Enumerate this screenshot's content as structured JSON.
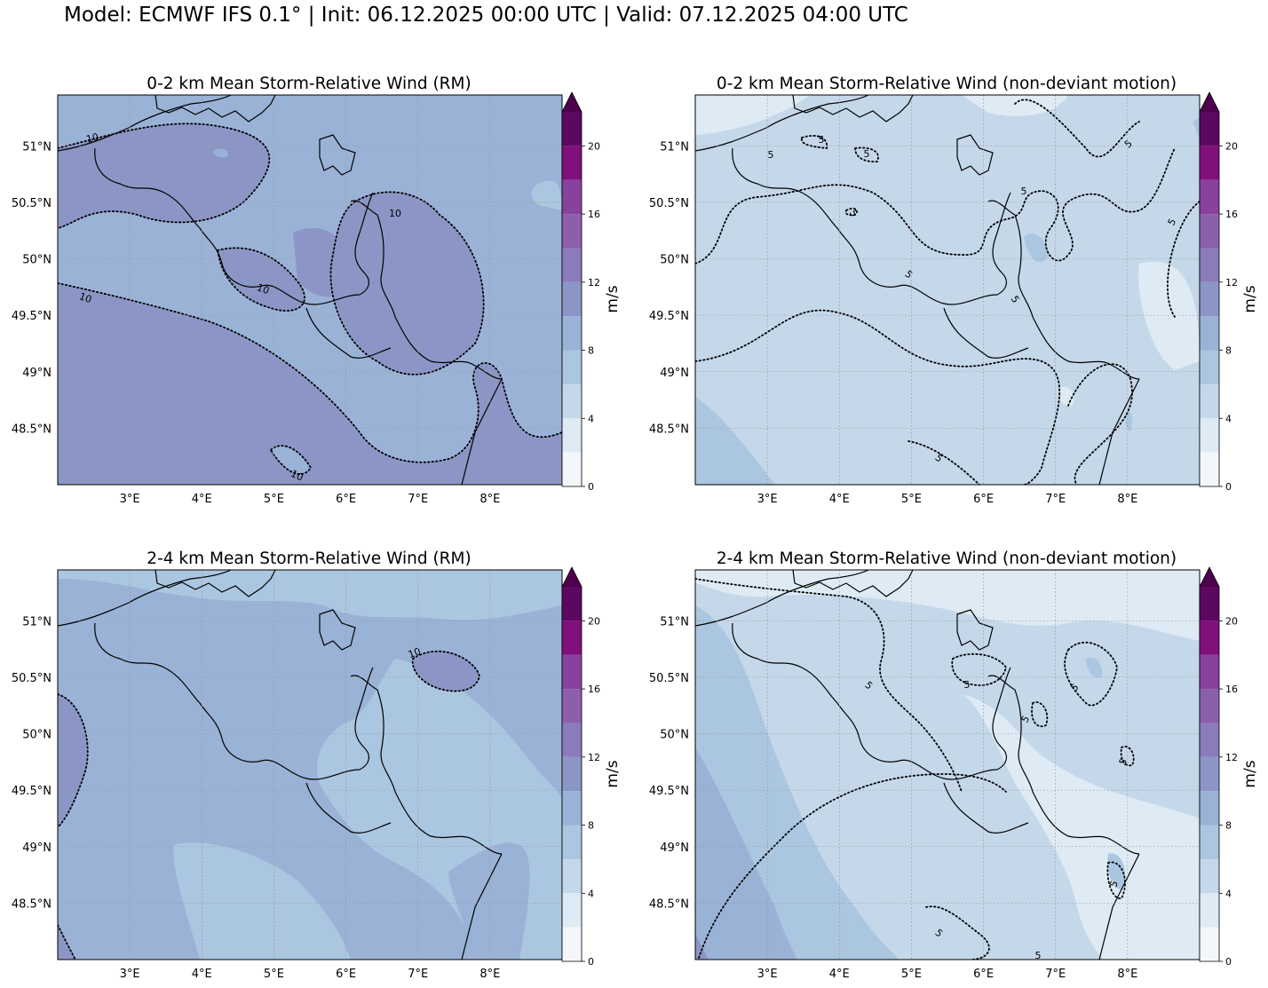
{
  "figure_title": "Model: ECMWF IFS 0.1° | Init: 06.12.2025 00:00 UTC | Valid: 07.12.2025 04:00 UTC",
  "colors": {
    "levels": [
      "#f3f7fb",
      "#dfebf4",
      "#c5d8ea",
      "#abc6e0",
      "#9ab2d6",
      "#8c96c6",
      "#8c7bba",
      "#8c5fac",
      "#88419d",
      "#810f7c",
      "#5c0860",
      "#4d004b"
    ],
    "coast": "#000000",
    "grid": "#9a9a9a"
  },
  "chart_data": [
    {
      "type": "map",
      "title": "0-2 km Mean Storm-Relative Wind (RM)",
      "colorbar": {
        "label": "m/s",
        "range": [
          0,
          22
        ],
        "ticks": [
          "0",
          "4",
          "8",
          "12",
          "16",
          "20"
        ],
        "extend": "max"
      },
      "lon_ticks": [
        "3°E",
        "4°E",
        "5°E",
        "6°E",
        "7°E",
        "8°E"
      ],
      "lat_ticks": [
        "51°N",
        "50.5°N",
        "50°N",
        "49.5°N",
        "49°N",
        "48.5°N"
      ],
      "extent": {
        "lon": [
          2.0,
          9.0
        ],
        "lat": [
          48.0,
          51.45
        ]
      },
      "background_level": 4,
      "contour_labels": [
        "10",
        "10",
        "10",
        "10",
        "10"
      ]
    },
    {
      "type": "map",
      "title": "0-2 km Mean Storm-Relative Wind (non-deviant motion)",
      "colorbar": {
        "label": "m/s",
        "range": [
          0,
          22
        ],
        "ticks": [
          "0",
          "4",
          "8",
          "12",
          "16",
          "20"
        ],
        "extend": "max"
      },
      "lon_ticks": [
        "3°E",
        "4°E",
        "5°E",
        "6°E",
        "7°E",
        "8°E"
      ],
      "lat_ticks": [
        "51°N",
        "50.5°N",
        "50°N",
        "49.5°N",
        "49°N",
        "48.5°N"
      ],
      "extent": {
        "lon": [
          2.0,
          9.0
        ],
        "lat": [
          48.0,
          51.45
        ]
      },
      "background_level": 2,
      "contour_labels": [
        "5",
        "5",
        "5",
        "5",
        "5",
        "5",
        "5",
        "5",
        "5",
        "5"
      ]
    },
    {
      "type": "map",
      "title": "2-4 km Mean Storm-Relative Wind (RM)",
      "colorbar": {
        "label": "m/s",
        "range": [
          0,
          22
        ],
        "ticks": [
          "0",
          "4",
          "8",
          "12",
          "16",
          "20"
        ],
        "extend": "max"
      },
      "lon_ticks": [
        "3°E",
        "4°E",
        "5°E",
        "6°E",
        "7°E",
        "8°E"
      ],
      "lat_ticks": [
        "51°N",
        "50.5°N",
        "50°N",
        "49.5°N",
        "49°N",
        "48.5°N"
      ],
      "extent": {
        "lon": [
          2.0,
          9.0
        ],
        "lat": [
          48.0,
          51.45
        ]
      },
      "background_level": 4,
      "contour_labels": [
        "10"
      ]
    },
    {
      "type": "map",
      "title": "2-4 km Mean Storm-Relative Wind (non-deviant motion)",
      "colorbar": {
        "label": "m/s",
        "range": [
          0,
          22
        ],
        "ticks": [
          "0",
          "4",
          "8",
          "12",
          "16",
          "20"
        ],
        "extend": "max"
      },
      "lon_ticks": [
        "3°E",
        "4°E",
        "5°E",
        "6°E",
        "7°E",
        "8°E"
      ],
      "lat_ticks": [
        "51°N",
        "50.5°N",
        "50°N",
        "49.5°N",
        "49°N",
        "48.5°N"
      ],
      "extent": {
        "lon": [
          2.0,
          9.0
        ],
        "lat": [
          48.0,
          51.45
        ]
      },
      "background_level": 2,
      "contour_labels": [
        "5",
        "5",
        "5",
        "5",
        "5",
        "5",
        "5",
        "5"
      ]
    }
  ]
}
